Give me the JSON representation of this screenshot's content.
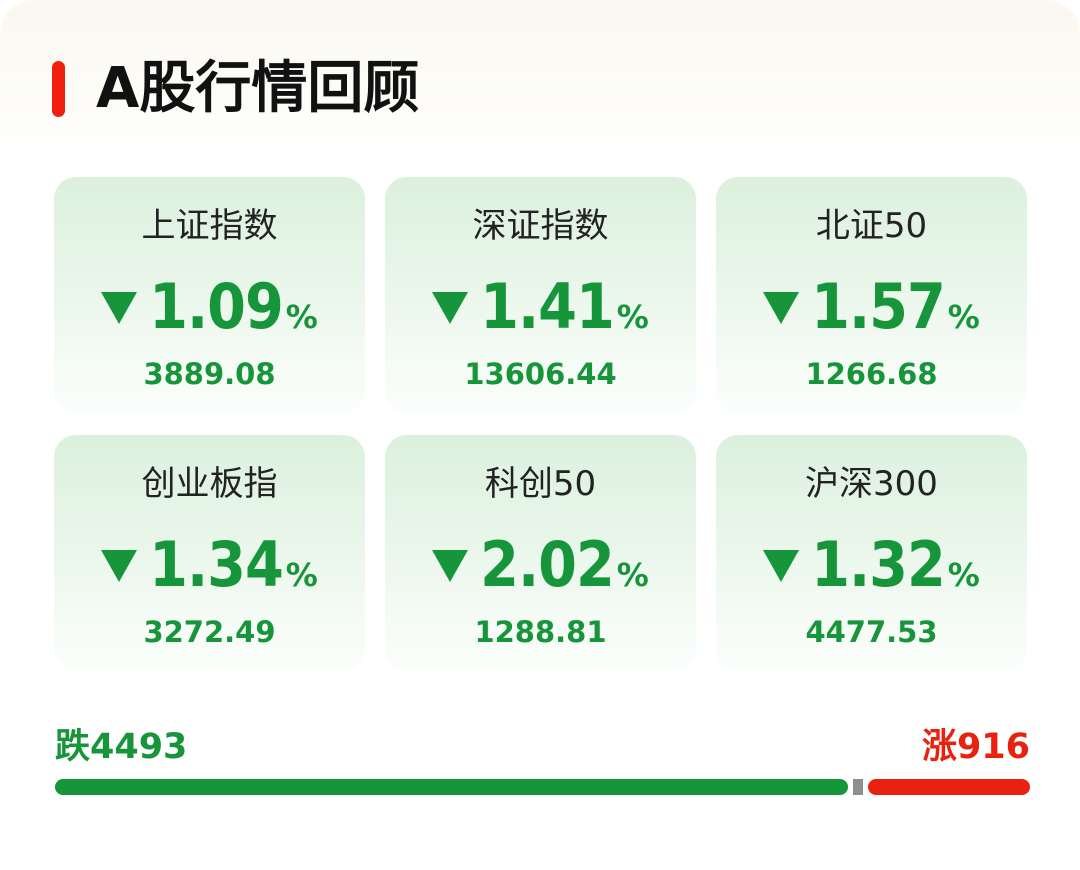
{
  "header": {
    "title": "A股行情回顾",
    "accent_color": "#f01f0f"
  },
  "indices": [
    {
      "name": "上证指数",
      "change": "1.09",
      "percent": "%",
      "price": "3889.08",
      "direction": "down",
      "icon": "down-triangle-icon"
    },
    {
      "name": "深证指数",
      "change": "1.41",
      "percent": "%",
      "price": "13606.44",
      "direction": "down",
      "icon": "down-triangle-icon"
    },
    {
      "name": "北证50",
      "change": "1.57",
      "percent": "%",
      "price": "1266.68",
      "direction": "down",
      "icon": "down-triangle-icon"
    },
    {
      "name": "创业板指",
      "change": "1.34",
      "percent": "%",
      "price": "3272.49",
      "direction": "down",
      "icon": "down-triangle-icon"
    },
    {
      "name": "科创50",
      "change": "2.02",
      "percent": "%",
      "price": "1288.81",
      "direction": "down",
      "icon": "down-triangle-icon"
    },
    {
      "name": "沪深300",
      "change": "1.32",
      "percent": "%",
      "price": "4477.53",
      "direction": "down",
      "icon": "down-triangle-icon"
    }
  ],
  "breadth": {
    "down_label": "跌4493",
    "up_label": "涨916",
    "down_count": 4493,
    "up_count": 916,
    "down_color": "#15963a",
    "flat_color": "#8f8f8f",
    "up_color": "#e8220f"
  },
  "colors": {
    "down": "#17953a",
    "up": "#e8220f",
    "text": "#222222"
  }
}
